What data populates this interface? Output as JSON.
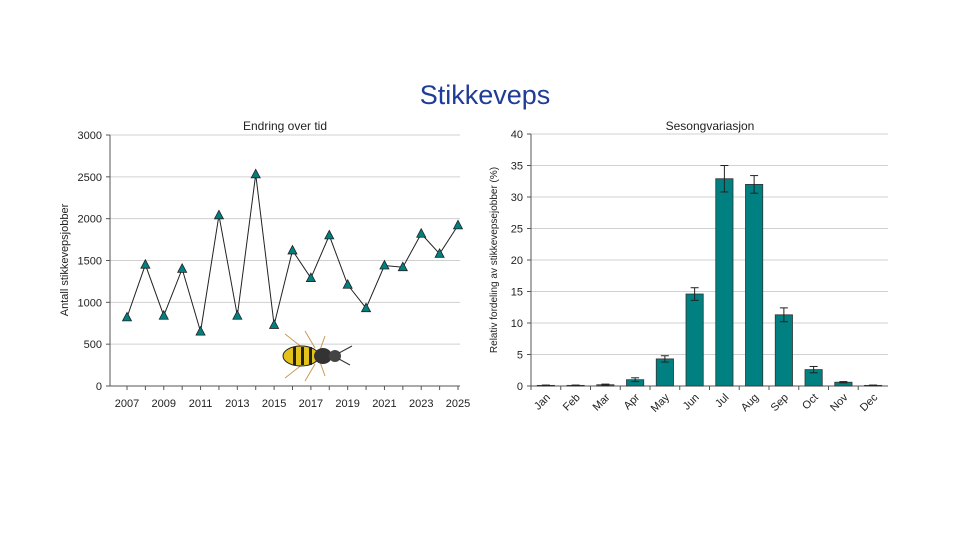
{
  "page_title": "Stikkeveps",
  "chart_data": [
    {
      "type": "line",
      "title": "Endring over tid",
      "xlabel": "",
      "ylabel": "Antall stikkevepsjobber",
      "ylim": [
        0,
        3000
      ],
      "yticks": [
        0,
        500,
        1000,
        1500,
        2000,
        2500,
        3000
      ],
      "xtick_labels": [
        "2007",
        "2009",
        "2011",
        "2013",
        "2015",
        "2017",
        "2019",
        "2021",
        "2023",
        "2025"
      ],
      "grid": true,
      "marker": "triangle",
      "color": "#008080",
      "x": [
        2007,
        2008,
        2009,
        2010,
        2011,
        2012,
        2013,
        2014,
        2015,
        2016,
        2017,
        2018,
        2019,
        2020,
        2021,
        2022,
        2023,
        2024,
        2025
      ],
      "y": [
        820,
        1450,
        840,
        1400,
        650,
        2040,
        840,
        2530,
        730,
        1620,
        1290,
        1800,
        1210,
        930,
        1440,
        1420,
        1820,
        1580,
        1920
      ]
    },
    {
      "type": "bar",
      "title": "Sesongvariasjon",
      "xlabel": "",
      "ylabel": "Relativ fordeling av stikkevepsejobber (%)",
      "ylim": [
        0,
        40
      ],
      "yticks": [
        0,
        5,
        10,
        15,
        20,
        25,
        30,
        35,
        40
      ],
      "grid": true,
      "color": "#008080",
      "categories": [
        "Jan",
        "Feb",
        "Mar",
        "Apr",
        "May",
        "Jun",
        "Jul",
        "Aug",
        "Sep",
        "Oct",
        "Nov",
        "Dec"
      ],
      "values": [
        0.1,
        0.1,
        0.2,
        1.0,
        4.3,
        14.6,
        32.9,
        32.0,
        11.3,
        2.6,
        0.6,
        0.1
      ],
      "errors": [
        0.05,
        0.05,
        0.1,
        0.3,
        0.5,
        1.0,
        2.1,
        1.4,
        1.1,
        0.5,
        0.1,
        0.05
      ]
    }
  ]
}
